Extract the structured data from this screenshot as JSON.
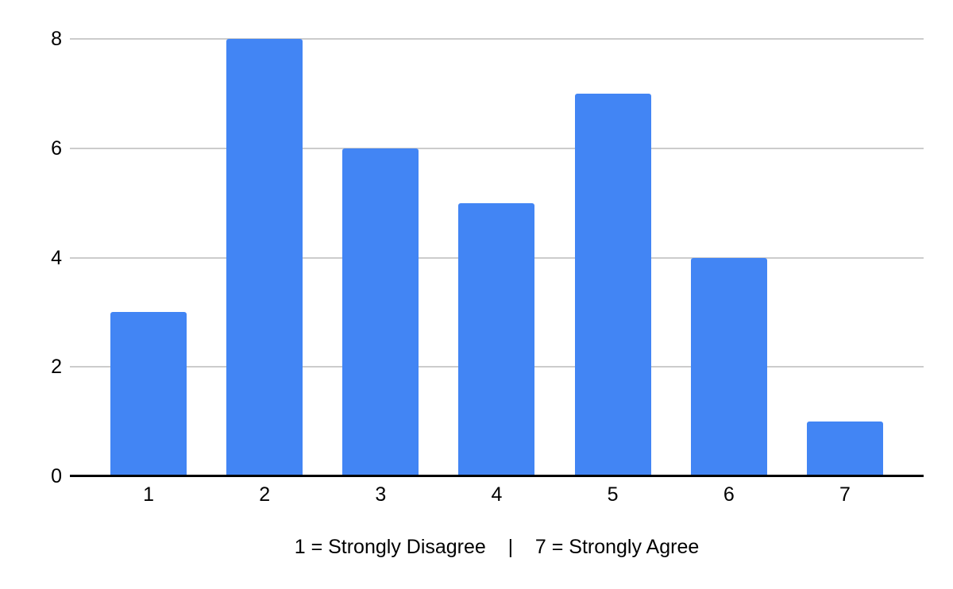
{
  "chart_data": {
    "type": "bar",
    "title": "",
    "categories": [
      "1",
      "2",
      "3",
      "4",
      "5",
      "6",
      "7"
    ],
    "values": [
      3,
      8,
      6,
      5,
      7,
      4,
      1
    ],
    "xlabel": "1 = Strongly Disagree    |    7 = Strongly Agree",
    "ylabel": "",
    "ylim": [
      0,
      8
    ],
    "yticks": [
      0,
      2,
      4,
      6,
      8
    ],
    "grid": true,
    "legend_position": "none"
  },
  "colors": {
    "bar": "#4285f4",
    "gridline": "#cccccc",
    "axis_line": "#000000",
    "label_text": "#000000",
    "background": "#ffffff"
  }
}
